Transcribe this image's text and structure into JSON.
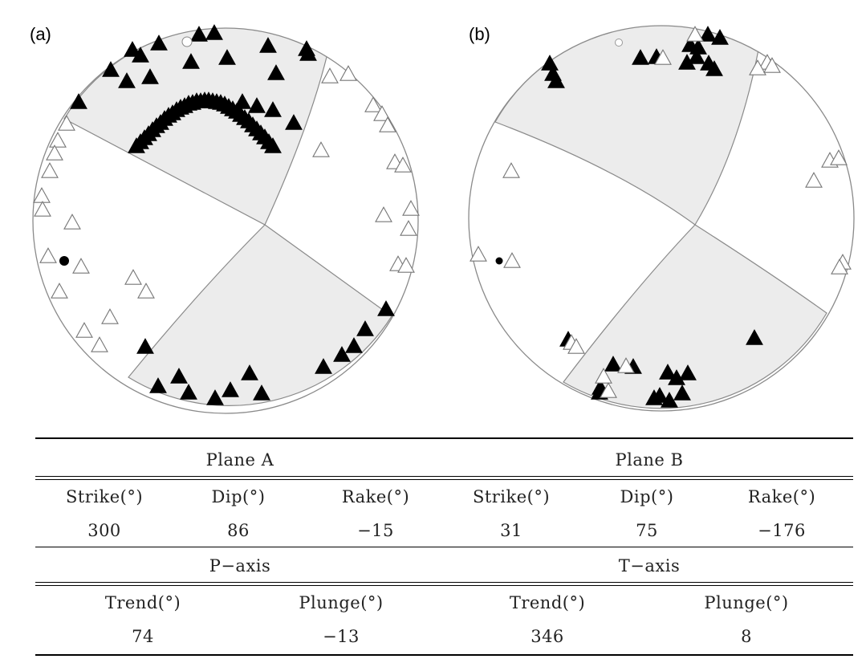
{
  "figure": {
    "panels": [
      {
        "label": "(a)"
      },
      {
        "label": "(b)"
      }
    ],
    "colors": {
      "compressional_fill": "#ececec",
      "outline": "#8a8a8a",
      "solid_marker": "#000000",
      "open_marker": "#ffffff"
    }
  },
  "table": {
    "plane_a": {
      "title": "Plane A",
      "headers": [
        "Strike(°)",
        "Dip(°)",
        "Rake(°)"
      ],
      "values": [
        "300",
        "86",
        "−15"
      ]
    },
    "plane_b": {
      "title": "Plane B",
      "headers": [
        "Strike(°)",
        "Dip(°)",
        "Rake(°)"
      ],
      "values": [
        "31",
        "75",
        "−176"
      ]
    },
    "p_axis": {
      "title": "P−axis",
      "headers": [
        "Trend(°)",
        "Plunge(°)"
      ],
      "values": [
        "74",
        "−13"
      ]
    },
    "t_axis": {
      "title": "T−axis",
      "headers": [
        "Trend(°)",
        "Plunge(°)"
      ],
      "values": [
        "346",
        "8"
      ]
    }
  }
}
